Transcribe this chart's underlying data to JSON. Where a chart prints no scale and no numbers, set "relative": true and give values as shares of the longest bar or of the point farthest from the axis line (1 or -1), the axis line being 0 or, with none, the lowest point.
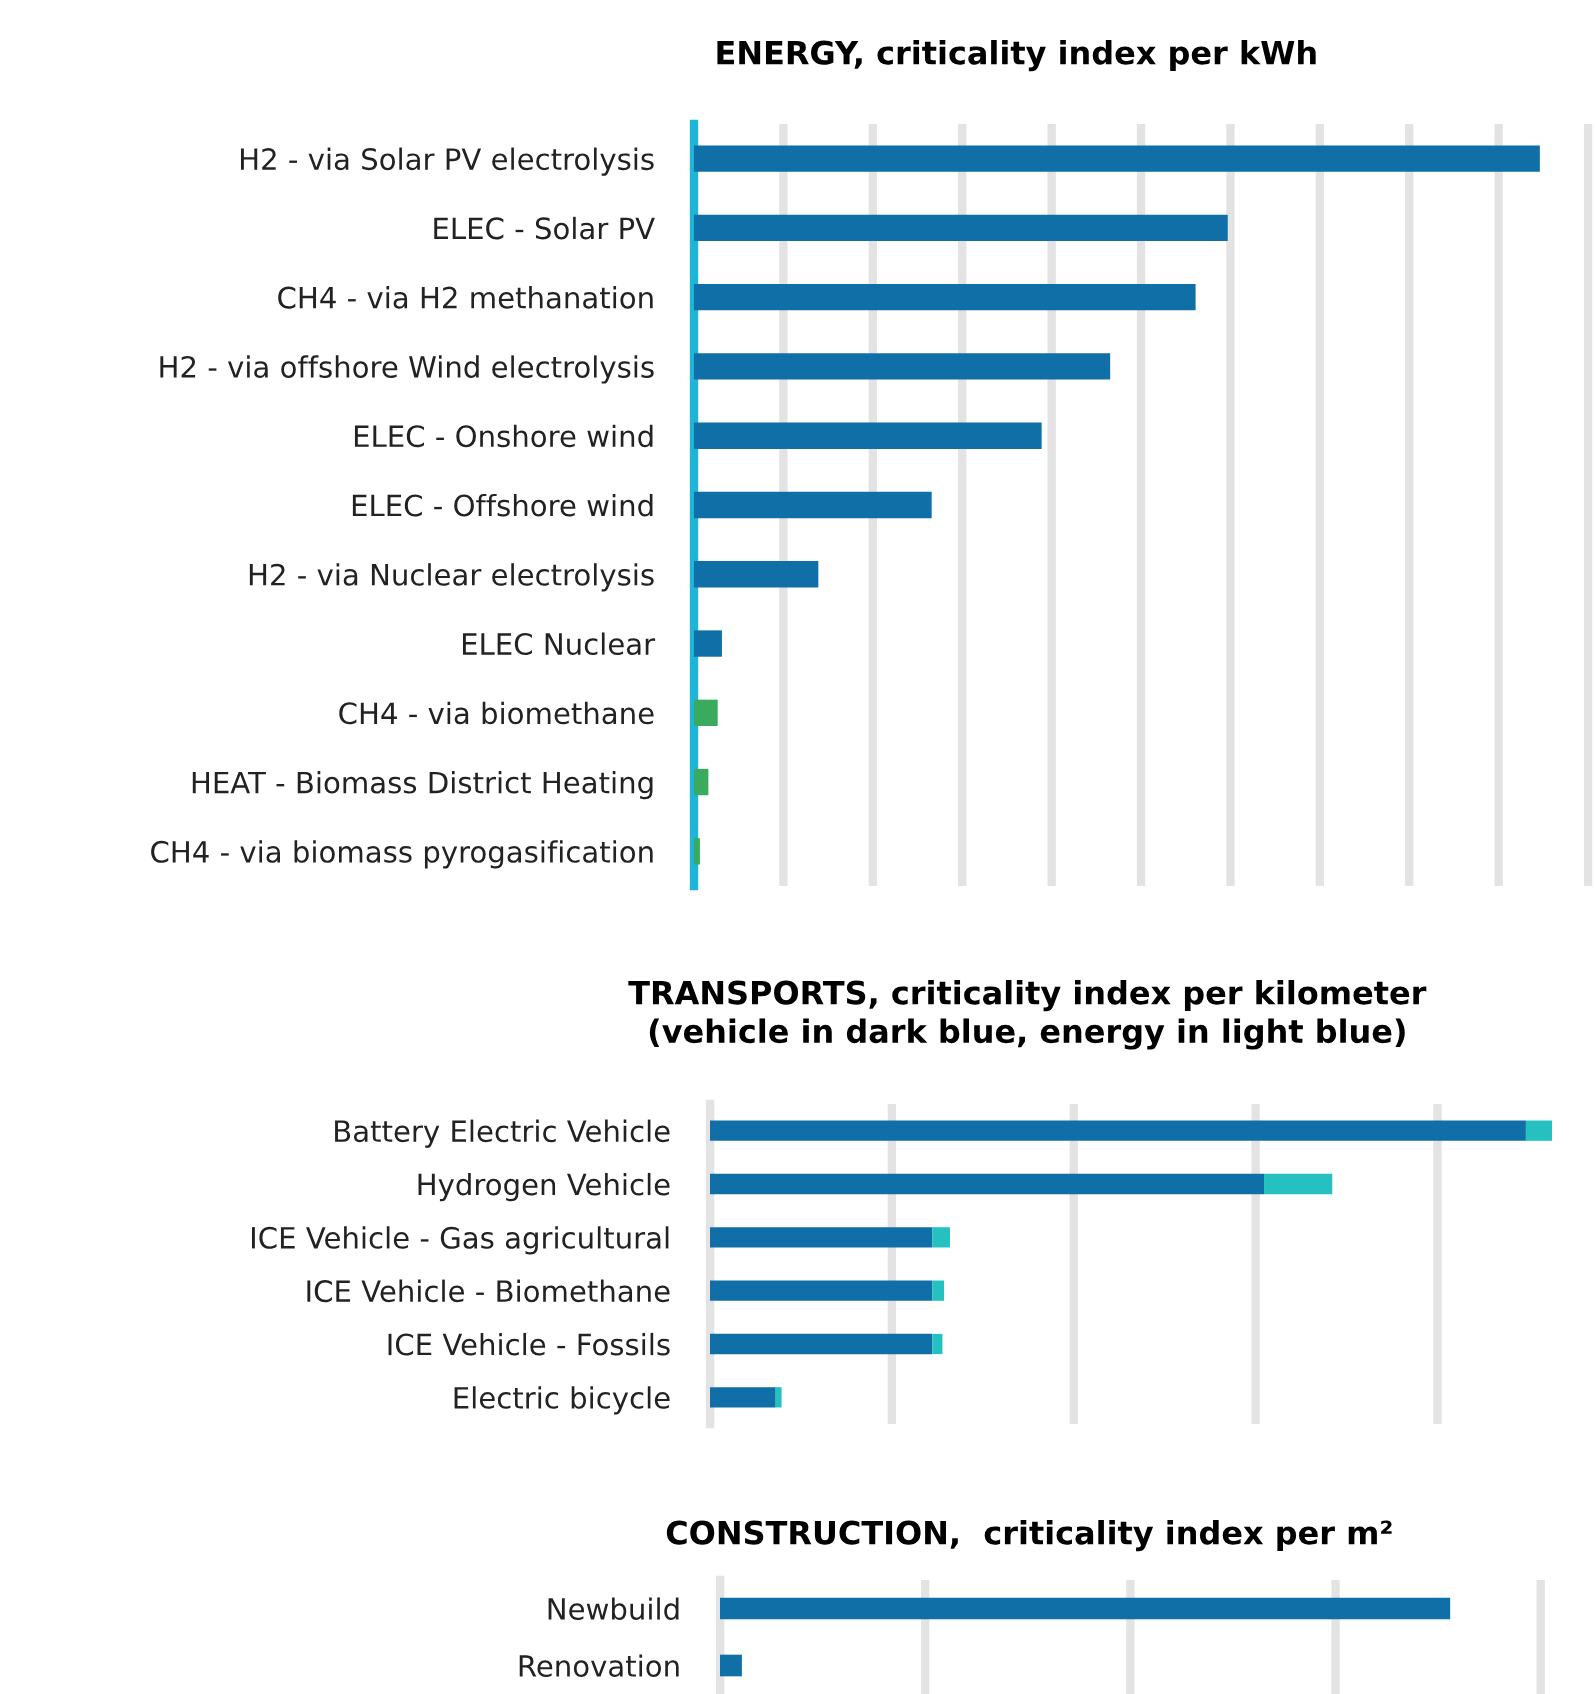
{
  "chart_data": [
    {
      "type": "bar",
      "orientation": "horizontal",
      "relative": true,
      "grid": "x",
      "tick_labels": "y",
      "title": "ENERGY, criticality index per kWh",
      "categories": [
        "H2 - via Solar PV electrolysis",
        "ELEC - Solar PV",
        "CH4 - via H2 methanation",
        "H2 - via offshore Wind electrolysis",
        "ELEC - Onshore wind",
        "ELEC - Offshore wind",
        "H2 - via Nuclear electrolysis",
        "ELEC Nuclear",
        "CH4 - via biomethane",
        "HEAT - Biomass District Heating",
        "CH4 - via biomass pyrogasification"
      ],
      "values": [
        1,
        0.631,
        0.593,
        0.492,
        0.411,
        0.281,
        0.147,
        0.033,
        0.028,
        0.017,
        0.007
      ],
      "colors": [
        "#0f6fa6",
        "#0f6fa6",
        "#0f6fa6",
        "#0f6fa6",
        "#0f6fa6",
        "#0f6fa6",
        "#0f6fa6",
        "#0f6fa6",
        "#3aaa5c",
        "#3aaa5c",
        "#3aaa5c"
      ]
    },
    {
      "type": "bar",
      "orientation": "horizontal",
      "relative": true,
      "stacked": true,
      "grid": "x",
      "tick_labels": "y",
      "title": "TRANSPORTS, criticality index per kilometer\n(vehicle in dark blue, energy in light blue)",
      "categories": [
        "Battery Electric Vehicle",
        "Hydrogen Vehicle",
        "ICE Vehicle - Gas agricultural",
        "ICE Vehicle - Biomethane",
        "ICE Vehicle - Fossils",
        "Electric bicycle"
      ],
      "series": [
        {
          "color": "#0f6fa6",
          "values": [
            0.969,
            0.658,
            0.264,
            0.264,
            0.264,
            0.078
          ]
        },
        {
          "color": "#25c0c0",
          "values": [
            0.031,
            0.081,
            0.021,
            0.014,
            0.012,
            0.007
          ]
        }
      ]
    },
    {
      "type": "bar",
      "orientation": "horizontal",
      "relative": true,
      "grid": "x",
      "tick_labels": "y",
      "title": "CONSTRUCTION,  criticality index per m²",
      "categories": [
        "Newbuild",
        "Renovation"
      ],
      "values": [
        1,
        0.03
      ],
      "colors": [
        "#0f6fa6",
        "#0f6fa6"
      ]
    }
  ]
}
